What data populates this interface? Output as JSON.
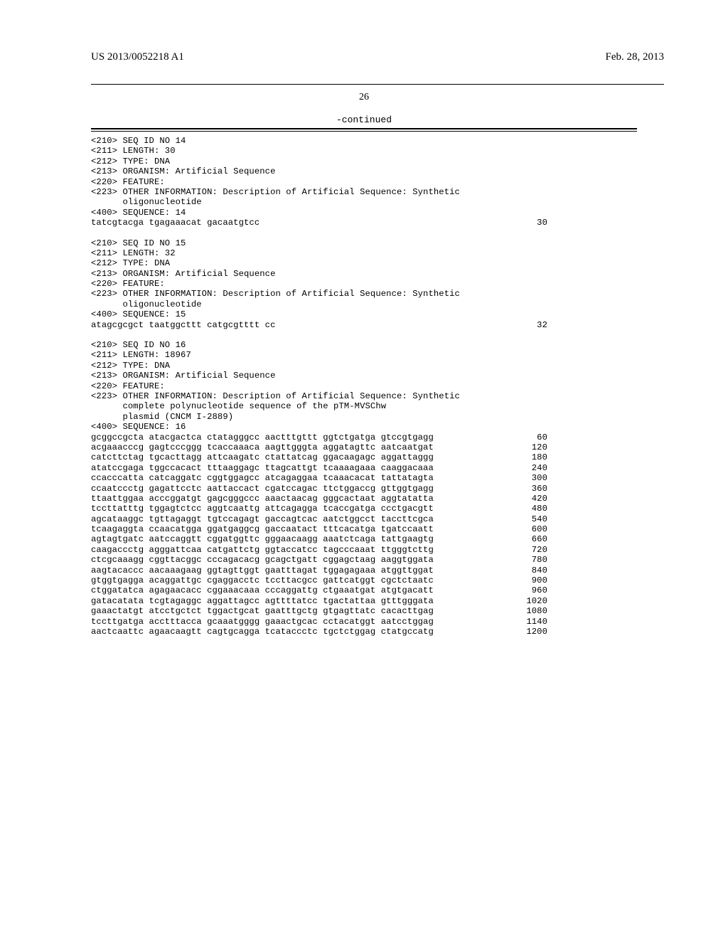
{
  "header": {
    "publication_number": "US 2013/0052218 A1",
    "publication_date": "Feb. 28, 2013"
  },
  "page_number": "26",
  "continued_label": "-continued",
  "seq14": {
    "lines": [
      "<210> SEQ ID NO 14",
      "<211> LENGTH: 30",
      "<212> TYPE: DNA",
      "<213> ORGANISM: Artificial Sequence",
      "<220> FEATURE:",
      "<223> OTHER INFORMATION: Description of Artificial Sequence: Synthetic",
      "      oligonucleotide"
    ],
    "seq_label": "<400> SEQUENCE: 14",
    "rows": [
      {
        "seq": "tatcgtacga tgagaaacat gacaatgtcc",
        "num": "30"
      }
    ]
  },
  "seq15": {
    "lines": [
      "<210> SEQ ID NO 15",
      "<211> LENGTH: 32",
      "<212> TYPE: DNA",
      "<213> ORGANISM: Artificial Sequence",
      "<220> FEATURE:",
      "<223> OTHER INFORMATION: Description of Artificial Sequence: Synthetic",
      "      oligonucleotide"
    ],
    "seq_label": "<400> SEQUENCE: 15",
    "rows": [
      {
        "seq": "atagcgcgct taatggcttt catgcgtttt cc",
        "num": "32"
      }
    ]
  },
  "seq16": {
    "lines": [
      "<210> SEQ ID NO 16",
      "<211> LENGTH: 18967",
      "<212> TYPE: DNA",
      "<213> ORGANISM: Artificial Sequence",
      "<220> FEATURE:",
      "<223> OTHER INFORMATION: Description of Artificial Sequence: Synthetic",
      "      complete polynucleotide sequence of the pTM-MVSChw",
      "      plasmid (CNCM I-2889)"
    ],
    "seq_label": "<400> SEQUENCE: 16",
    "rows": [
      {
        "seq": "gcggccgcta atacgactca ctatagggcc aactttgttt ggtctgatga gtccgtgagg",
        "num": "60"
      },
      {
        "seq": "acgaaacccg gagtcccggg tcaccaaaca aagttgggta aggatagttc aatcaatgat",
        "num": "120"
      },
      {
        "seq": "catcttctag tgcacttagg attcaagatc ctattatcag ggacaagagc aggattaggg",
        "num": "180"
      },
      {
        "seq": "atatccgaga tggccacact tttaaggagc ttagcattgt tcaaaagaaa caaggacaaa",
        "num": "240"
      },
      {
        "seq": "ccacccatta catcaggatc cggtggagcc atcagaggaa tcaaacacat tattatagta",
        "num": "300"
      },
      {
        "seq": "ccaatccctg gagattcctc aattaccact cgatccagac ttctggaccg gttggtgagg",
        "num": "360"
      },
      {
        "seq": "ttaattggaa acccggatgt gagcgggccc aaactaacag gggcactaat aggtatatta",
        "num": "420"
      },
      {
        "seq": "tccttatttg tggagtctcc aggtcaattg attcagagga tcaccgatga ccctgacgtt",
        "num": "480"
      },
      {
        "seq": "agcataaggc tgttagaggt tgtccagagt gaccagtcac aatctggcct taccttcgca",
        "num": "540"
      },
      {
        "seq": "tcaagaggta ccaacatgga ggatgaggcg gaccaatact tttcacatga tgatccaatt",
        "num": "600"
      },
      {
        "seq": "agtagtgatc aatccaggtt cggatggttc gggaacaagg aaatctcaga tattgaagtg",
        "num": "660"
      },
      {
        "seq": "caagaccctg agggattcaa catgattctg ggtaccatcc tagcccaaat ttgggtcttg",
        "num": "720"
      },
      {
        "seq": "ctcgcaaagg cggttacggc cccagacacg gcagctgatt cggagctaag aaggtggata",
        "num": "780"
      },
      {
        "seq": "aagtacaccc aacaaagaag ggtagttggt gaatttagat tggagagaaa atggttggat",
        "num": "840"
      },
      {
        "seq": "gtggtgagga acaggattgc cgaggacctc tccttacgcc gattcatggt cgctctaatc",
        "num": "900"
      },
      {
        "seq": "ctggatatca agagaacacc cggaaacaaa cccaggattg ctgaaatgat atgtgacatt",
        "num": "960"
      },
      {
        "seq": "gatacatata tcgtagaggc aggattagcc agttttatcc tgactattaa gtttgggata",
        "num": "1020"
      },
      {
        "seq": "gaaactatgt atcctgctct tggactgcat gaatttgctg gtgagttatc cacacttgag",
        "num": "1080"
      },
      {
        "seq": "tccttgatga acctttacca gcaaatgggg gaaactgcac cctacatggt aatcctggag",
        "num": "1140"
      },
      {
        "seq": "aactcaattc agaacaagtt cagtgcagga tcataccctc tgctctggag ctatgccatg",
        "num": "1200"
      }
    ]
  }
}
